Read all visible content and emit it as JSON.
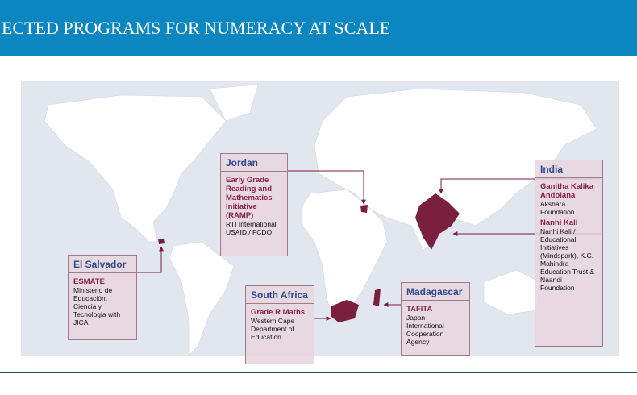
{
  "header": {
    "title": "ECTED PROGRAMS FOR NUMERACY AT SCALE"
  },
  "callouts": [
    {
      "country": "Jordan",
      "programs": [
        {
          "name": "Early Grade Reading and Mathematics Initiative (RAMP)",
          "org": [
            "RTI International",
            "USAID / FCDO"
          ]
        }
      ]
    },
    {
      "country": "El Salvador",
      "programs": [
        {
          "name": "ESMATE",
          "org": [
            "Ministerio de Educación, Ciencia y Tecnologia with JICA"
          ]
        }
      ]
    },
    {
      "country": "South Africa",
      "programs": [
        {
          "name": "Grade R Maths",
          "org": [
            "Western Cape Department of Education"
          ]
        }
      ]
    },
    {
      "country": "Madagascar",
      "programs": [
        {
          "name": "TAFITA",
          "org": [
            "Japan International Cooperation Agency"
          ]
        }
      ]
    },
    {
      "country": "India",
      "programs": [
        {
          "name": "Ganitha Kalika Andolana",
          "org": [
            "Akshara Foundation"
          ]
        },
        {
          "name": "Nanhi Kali",
          "org": [
            "Nanhi Kali / Educational Initiatives (Mindspark), K.C. Mahindra Education Trust & Naandi Foundation"
          ]
        }
      ]
    }
  ]
}
